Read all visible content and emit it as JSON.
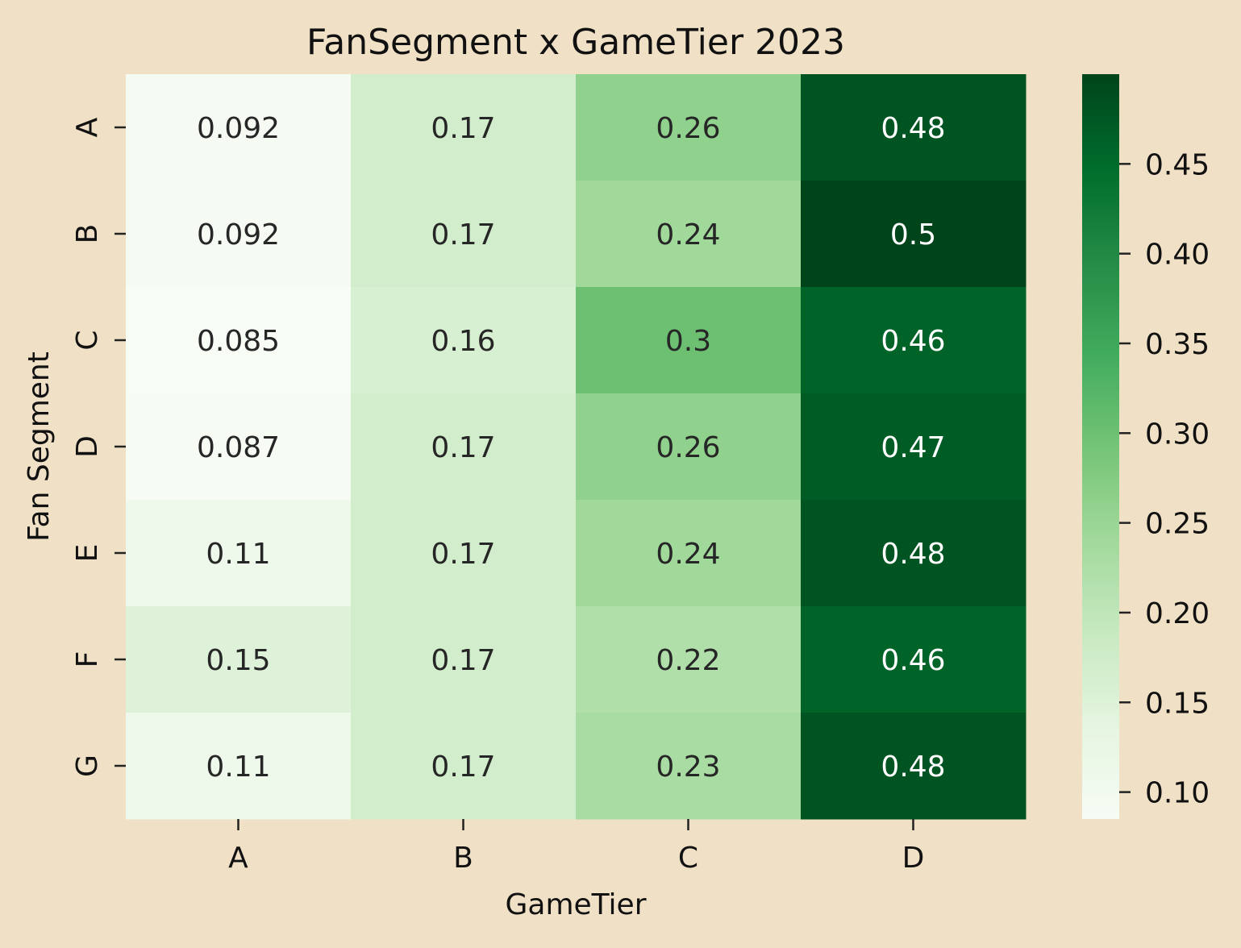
{
  "chart_data": {
    "type": "heatmap",
    "title": "FanSegment x GameTier 2023",
    "xlabel": "GameTier",
    "ylabel": "Fan Segment",
    "x_categories": [
      "A",
      "B",
      "C",
      "D"
    ],
    "y_categories": [
      "A",
      "B",
      "C",
      "D",
      "E",
      "F",
      "G"
    ],
    "values": [
      [
        0.092,
        0.17,
        0.26,
        0.48
      ],
      [
        0.092,
        0.17,
        0.24,
        0.5
      ],
      [
        0.085,
        0.16,
        0.3,
        0.46
      ],
      [
        0.087,
        0.17,
        0.26,
        0.47
      ],
      [
        0.11,
        0.17,
        0.24,
        0.48
      ],
      [
        0.15,
        0.17,
        0.22,
        0.46
      ],
      [
        0.11,
        0.17,
        0.23,
        0.48
      ]
    ],
    "value_labels": [
      [
        "0.092",
        "0.17",
        "0.26",
        "0.48"
      ],
      [
        "0.092",
        "0.17",
        "0.24",
        "0.5"
      ],
      [
        "0.085",
        "0.16",
        "0.3",
        "0.46"
      ],
      [
        "0.087",
        "0.17",
        "0.26",
        "0.47"
      ],
      [
        "0.11",
        "0.17",
        "0.24",
        "0.48"
      ],
      [
        "0.15",
        "0.17",
        "0.22",
        "0.46"
      ],
      [
        "0.11",
        "0.17",
        "0.23",
        "0.48"
      ]
    ],
    "colorbar": {
      "ticks": [
        0.1,
        0.15,
        0.2,
        0.25,
        0.3,
        0.35,
        0.4,
        0.45
      ],
      "tick_labels": [
        "0.10",
        "0.15",
        "0.20",
        "0.25",
        "0.30",
        "0.35",
        "0.40",
        "0.45"
      ],
      "range": [
        0.085,
        0.5
      ]
    },
    "colormap": "Greens",
    "colormap_stops": [
      "#f7fcf5",
      "#e5f5e0",
      "#c7e9c0",
      "#a1d99b",
      "#74c476",
      "#41ab5d",
      "#238b45",
      "#006d2c",
      "#00441b"
    ],
    "background": "#f0e1c6"
  }
}
